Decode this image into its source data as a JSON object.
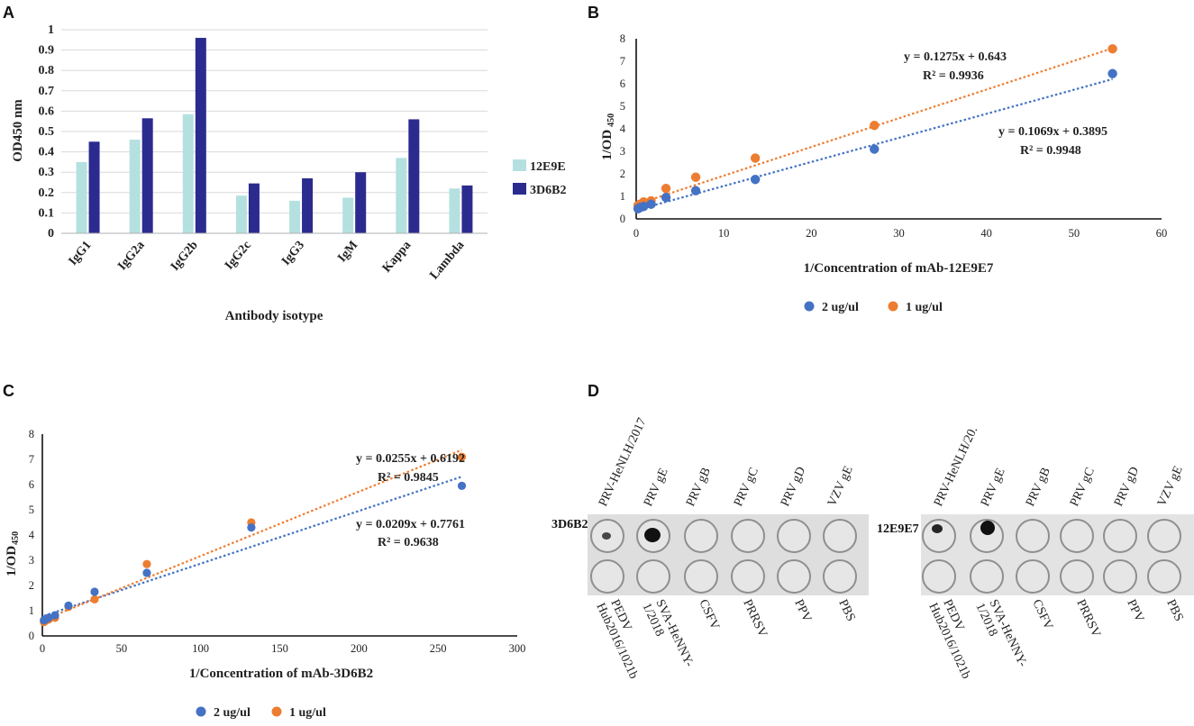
{
  "colors": {
    "clone12": "#b5e0e0",
    "clone3D": "#2b2b8f",
    "blue": "#4472c4",
    "orange": "#ed7d31",
    "membrane": "#dedede",
    "well_ring": "#8f8f8f",
    "spot": "#111111"
  },
  "chart_data": [
    {
      "panel": "A",
      "type": "bar",
      "categories": [
        "IgG1",
        "IgG2a",
        "IgG2b",
        "IgG2c",
        "IgG3",
        "IgM",
        "Kappa",
        "Lambda"
      ],
      "series": [
        {
          "name": "12E9E",
          "values": [
            0.35,
            0.46,
            0.585,
            0.185,
            0.16,
            0.175,
            0.37,
            0.22
          ]
        },
        {
          "name": "3D6B2",
          "values": [
            0.45,
            0.565,
            0.96,
            0.245,
            0.27,
            0.3,
            0.56,
            0.235
          ]
        }
      ],
      "ylabel": "OD450 nm",
      "xlabel": "Antibody isotype",
      "ylim": [
        0,
        1
      ],
      "yticks": [
        "0",
        "0.1",
        "0.2",
        "0.3",
        "0.4",
        "0.5",
        "0.6",
        "0.7",
        "0.8",
        "0.9",
        "1"
      ]
    },
    {
      "panel": "B",
      "type": "scatter",
      "xlabel": "1/Concentration of mAb-12E9E7",
      "ylabel_main": "1/OD",
      "ylabel_sub": "450",
      "xlim": [
        0,
        60
      ],
      "ylim": [
        0,
        8
      ],
      "xticks": [
        "0",
        "10",
        "20",
        "30",
        "40",
        "50",
        "60"
      ],
      "yticks": [
        "0",
        "1",
        "2",
        "3",
        "4",
        "5",
        "6",
        "7",
        "8"
      ],
      "series": [
        {
          "name": "2 ug/ul",
          "x": [
            0.21,
            0.43,
            0.85,
            1.7,
            3.4,
            6.8,
            13.6,
            27.2,
            54.4
          ],
          "y": [
            0.45,
            0.5,
            0.55,
            0.65,
            0.95,
            1.25,
            1.75,
            3.1,
            6.45
          ],
          "trend": {
            "slope": 0.1069,
            "intercept": 0.3895
          }
        },
        {
          "name": "1 ug/ul",
          "x": [
            0.21,
            0.43,
            0.85,
            1.7,
            3.4,
            6.8,
            13.6,
            27.2,
            54.4
          ],
          "y": [
            0.6,
            0.65,
            0.75,
            0.8,
            1.35,
            1.85,
            2.7,
            4.15,
            7.55
          ],
          "trend": {
            "slope": 0.1275,
            "intercept": 0.643
          }
        }
      ],
      "equations": [
        {
          "line1": "y = 0.1275x + 0.643",
          "line2": "R² = 0.9936"
        },
        {
          "line1": "y = 0.1069x + 0.3895",
          "line2": "R² = 0.9948"
        }
      ]
    },
    {
      "panel": "C",
      "type": "scatter",
      "xlabel": "1/Concentration of mAb-3D6B2",
      "ylabel_main": "1/OD",
      "ylabel_sub": "450",
      "xlim": [
        0,
        300
      ],
      "ylim": [
        0,
        8
      ],
      "xticks": [
        "0",
        "50",
        "100",
        "150",
        "200",
        "250",
        "300"
      ],
      "yticks": [
        "0",
        "1",
        "2",
        "3",
        "4",
        "5",
        "6",
        "7",
        "8"
      ],
      "series": [
        {
          "name": "2 ug/ul",
          "x": [
            1,
            2,
            4,
            8,
            16.5,
            33,
            66,
            132,
            265
          ],
          "y": [
            0.62,
            0.65,
            0.72,
            0.82,
            1.2,
            1.75,
            2.5,
            4.3,
            5.95
          ],
          "trend": {
            "slope": 0.0209,
            "intercept": 0.7761
          }
        },
        {
          "name": "1 ug/ul",
          "x": [
            1,
            2,
            4,
            8,
            16.5,
            33,
            66,
            132,
            265
          ],
          "y": [
            0.55,
            0.6,
            0.65,
            0.72,
            1.15,
            1.45,
            2.85,
            4.5,
            7.1
          ],
          "trend": {
            "slope": 0.0255,
            "intercept": 0.6192
          }
        }
      ],
      "equations": [
        {
          "line1": "y = 0.0255x + 0.6192",
          "line2": "R² = 0.9845"
        },
        {
          "line1": "y = 0.0209x + 0.7761",
          "line2": "R² = 0.9638"
        }
      ]
    }
  ],
  "panels": {
    "a": "A",
    "b": "B",
    "c": "C",
    "d": "D"
  },
  "dotblot": {
    "top_labels": [
      "PRV gE",
      "PRV gB",
      "PRV gC",
      "PRV gD",
      "VZV gE"
    ],
    "left_first_label": "PRV-HeNLH/2017",
    "right_first_label": "PRV-HeNLH/20.",
    "bottom_labels": {
      "pedv_1": "PEDV",
      "pedv_2": "Hub2016/1021b",
      "sva_1": "SVA-HeNNY-",
      "sva_2": "1/2018",
      "csfv": "CSFV",
      "prrsv": "PRRSV",
      "ppv": "PPV",
      "pbs": "PBS"
    },
    "blot_3D6B2": "3D6B2",
    "blot_12E9E7": "12E9E7"
  }
}
